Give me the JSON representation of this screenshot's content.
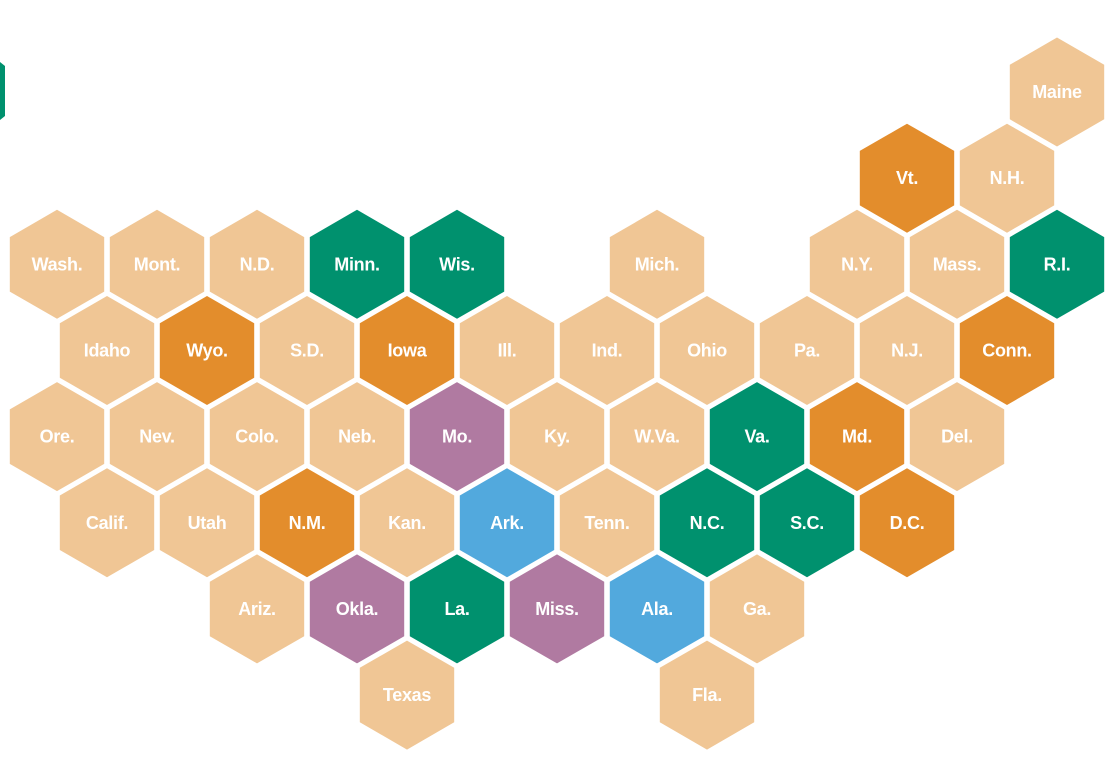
{
  "colors": {
    "light": "#F0C695",
    "orange": "#E38D2C",
    "green": "#00916E",
    "purple": "#B07AA1",
    "blue": "#52A9DD"
  },
  "legend_swatch_color": "#00916E",
  "states": [
    {
      "label": "Maine",
      "color": "light"
    },
    {
      "label": "Vt.",
      "color": "orange"
    },
    {
      "label": "N.H.",
      "color": "light"
    },
    {
      "label": "Wash.",
      "color": "light"
    },
    {
      "label": "Mont.",
      "color": "light"
    },
    {
      "label": "N.D.",
      "color": "light"
    },
    {
      "label": "Minn.",
      "color": "green"
    },
    {
      "label": "Wis.",
      "color": "green"
    },
    {
      "label": "Mich.",
      "color": "light"
    },
    {
      "label": "N.Y.",
      "color": "light"
    },
    {
      "label": "Mass.",
      "color": "light"
    },
    {
      "label": "R.I.",
      "color": "green"
    },
    {
      "label": "Idaho",
      "color": "light"
    },
    {
      "label": "Wyo.",
      "color": "orange"
    },
    {
      "label": "S.D.",
      "color": "light"
    },
    {
      "label": "Iowa",
      "color": "orange"
    },
    {
      "label": "Ill.",
      "color": "light"
    },
    {
      "label": "Ind.",
      "color": "light"
    },
    {
      "label": "Ohio",
      "color": "light"
    },
    {
      "label": "Pa.",
      "color": "light"
    },
    {
      "label": "N.J.",
      "color": "light"
    },
    {
      "label": "Conn.",
      "color": "orange"
    },
    {
      "label": "Ore.",
      "color": "light"
    },
    {
      "label": "Nev.",
      "color": "light"
    },
    {
      "label": "Colo.",
      "color": "light"
    },
    {
      "label": "Neb.",
      "color": "light"
    },
    {
      "label": "Mo.",
      "color": "purple"
    },
    {
      "label": "Ky.",
      "color": "light"
    },
    {
      "label": "W.Va.",
      "color": "light"
    },
    {
      "label": "Va.",
      "color": "green"
    },
    {
      "label": "Md.",
      "color": "orange"
    },
    {
      "label": "Del.",
      "color": "light"
    },
    {
      "label": "Calif.",
      "color": "light"
    },
    {
      "label": "Utah",
      "color": "light"
    },
    {
      "label": "N.M.",
      "color": "orange"
    },
    {
      "label": "Kan.",
      "color": "light"
    },
    {
      "label": "Ark.",
      "color": "blue"
    },
    {
      "label": "Tenn.",
      "color": "light"
    },
    {
      "label": "N.C.",
      "color": "green"
    },
    {
      "label": "S.C.",
      "color": "green"
    },
    {
      "label": "D.C.",
      "color": "orange"
    },
    {
      "label": "Ariz.",
      "color": "light"
    },
    {
      "label": "Okla.",
      "color": "purple"
    },
    {
      "label": "La.",
      "color": "green"
    },
    {
      "label": "Miss.",
      "color": "purple"
    },
    {
      "label": "Ala.",
      "color": "blue"
    },
    {
      "label": "Ga.",
      "color": "light"
    },
    {
      "label": "Texas",
      "color": "light"
    },
    {
      "label": "Fla.",
      "color": "light"
    }
  ]
}
